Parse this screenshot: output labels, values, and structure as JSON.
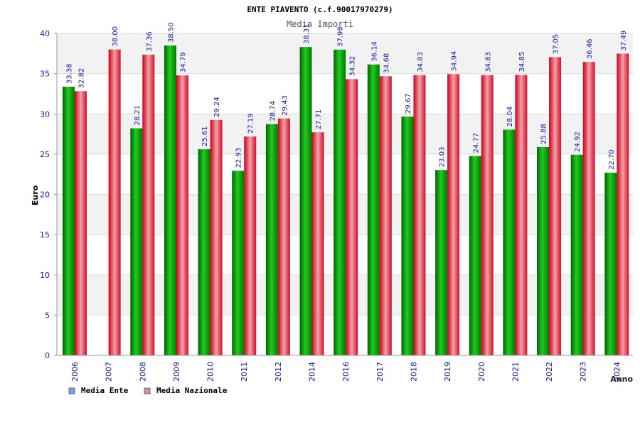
{
  "chart_data": {
    "type": "bar",
    "title": "ENTE PIAVENTO (c.f.90017970279)",
    "subtitle": "Media Importi",
    "xlabel": "Anno",
    "ylabel": "Euro",
    "ylim": [
      0,
      40
    ],
    "yticks": [
      0,
      5,
      10,
      15,
      20,
      25,
      30,
      35,
      40
    ],
    "grid": true,
    "legend_position": "bottom-left",
    "categories": [
      "2006",
      "2007",
      "2008",
      "2009",
      "2010",
      "2011",
      "2012",
      "2014",
      "2016",
      "2017",
      "2018",
      "2019",
      "2020",
      "2021",
      "2022",
      "2023",
      "2024"
    ],
    "series": [
      {
        "name": "Media Ente",
        "color": "#00a000",
        "legend_color": "#6fa8e8",
        "values": [
          33.38,
          null,
          28.21,
          38.5,
          25.61,
          22.93,
          28.74,
          38.31,
          37.98,
          36.14,
          29.67,
          23.03,
          24.77,
          28.04,
          25.88,
          24.92,
          22.7
        ],
        "labels": [
          "33.38",
          null,
          "28.21",
          "38.50",
          "25.61",
          "22.93",
          "28.74",
          "38.31",
          "37.98",
          "36.14",
          "29.67",
          "23.03",
          "24.77",
          "28.04",
          "25.88",
          "24.92",
          "22.70"
        ]
      },
      {
        "name": "Media Nazionale",
        "color": "#e01828",
        "legend_color": "#d986b8",
        "values": [
          32.82,
          38.0,
          37.36,
          34.79,
          29.24,
          27.19,
          29.43,
          27.71,
          34.32,
          34.68,
          34.83,
          34.94,
          34.83,
          34.85,
          37.05,
          36.46,
          37.49
        ],
        "labels": [
          "32.82",
          "38.00",
          "37.36",
          "34.79",
          "29.24",
          "27.19",
          "29.43",
          "27.71",
          "34.32",
          "34.68",
          "34.83",
          "34.94",
          "34.83",
          "34.85",
          "37.05",
          "36.46",
          "37.49"
        ]
      }
    ]
  }
}
